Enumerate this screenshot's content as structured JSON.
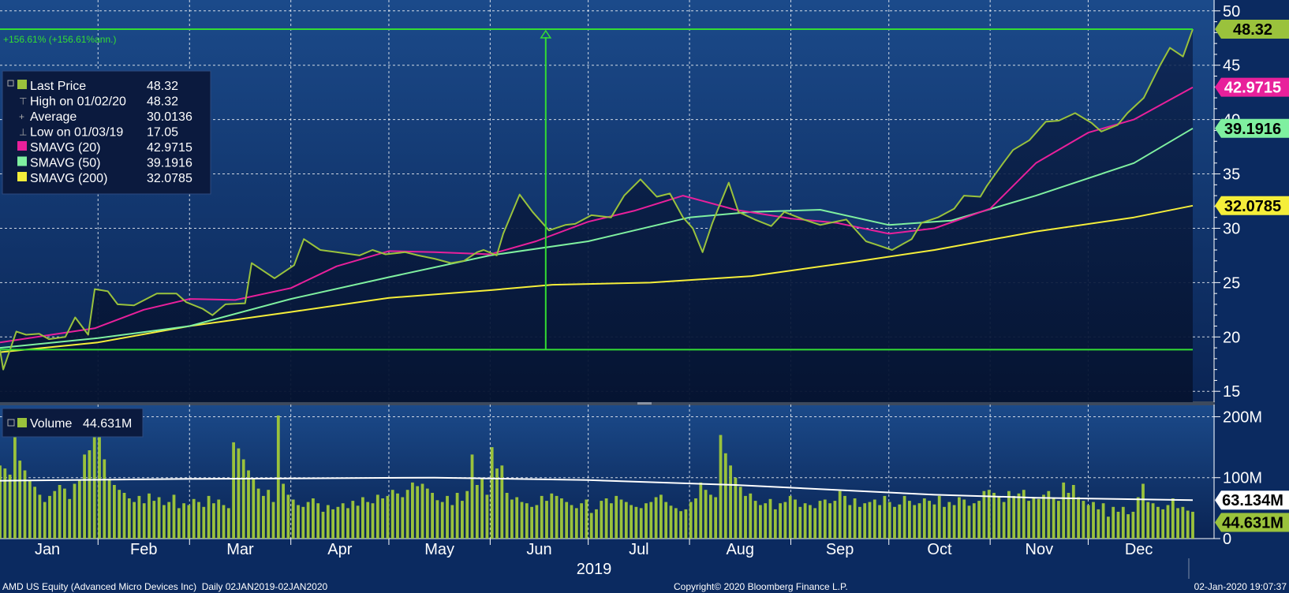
{
  "colors": {
    "price": "#9ac23c",
    "sma20": "#e8209b",
    "sma50": "#7ff0a0",
    "sma200": "#f5ee3a",
    "range_line": "#33dd33",
    "volume_bar": "#9ac23c",
    "volume_avg": "#ffffff"
  },
  "chart_data": [
    {
      "type": "line",
      "panel": "price",
      "x_range": [
        "2019-01-02",
        "2020-01-02"
      ],
      "ylim": [
        14,
        51
      ],
      "yticks": [
        15,
        20,
        25,
        30,
        35,
        40,
        45,
        50
      ],
      "grid": true,
      "legend_position": "top-left",
      "annotation": "+156.61% (+156.61%ann.)",
      "range_lines": {
        "high": 48.32,
        "low": 18.83,
        "date": "2019-06-18"
      },
      "legend": [
        {
          "label": "Last Price",
          "value": "48.32",
          "marker": "square",
          "color_key": "price"
        },
        {
          "label": "High on 01/02/20",
          "value": "48.32",
          "marker": "glyph"
        },
        {
          "label": "Average",
          "value": "30.0136",
          "marker": "glyph"
        },
        {
          "label": "Low on 01/03/19",
          "value": "17.05",
          "marker": "glyph"
        },
        {
          "label": "SMAVG (20)",
          "value": "42.9715",
          "marker": "square",
          "color_key": "sma20"
        },
        {
          "label": "SMAVG (50)",
          "value": "39.1916",
          "marker": "square",
          "color_key": "sma50"
        },
        {
          "label": "SMAVG (200)",
          "value": "32.0785",
          "marker": "square",
          "color_key": "sma200"
        }
      ],
      "value_tags": [
        {
          "text": "48.32",
          "value": 48.32,
          "color_key": "price",
          "text_color": "#000000"
        },
        {
          "text": "42.9715",
          "value": 42.9715,
          "color_key": "sma20",
          "text_color": "#ffffff"
        },
        {
          "text": "39.1916",
          "value": 39.1916,
          "color_key": "sma50",
          "text_color": "#000000"
        },
        {
          "text": "32.0785",
          "value": 32.0785,
          "color_key": "sma200",
          "text_color": "#000000"
        }
      ],
      "series": [
        {
          "key": "price",
          "points": [
            [
              "2019-01-02",
              18.8
            ],
            [
              "2019-01-03",
              17.0
            ],
            [
              "2019-01-07",
              20.5
            ],
            [
              "2019-01-10",
              20.2
            ],
            [
              "2019-01-14",
              20.3
            ],
            [
              "2019-01-17",
              19.8
            ],
            [
              "2019-01-22",
              20.0
            ],
            [
              "2019-01-25",
              21.8
            ],
            [
              "2019-01-29",
              20.2
            ],
            [
              "2019-01-31",
              24.4
            ],
            [
              "2019-02-04",
              24.2
            ],
            [
              "2019-02-07",
              23.0
            ],
            [
              "2019-02-12",
              22.9
            ],
            [
              "2019-02-19",
              24.0
            ],
            [
              "2019-02-25",
              24.0
            ],
            [
              "2019-02-28",
              23.2
            ],
            [
              "2019-03-05",
              22.6
            ],
            [
              "2019-03-08",
              22.0
            ],
            [
              "2019-03-12",
              23.0
            ],
            [
              "2019-03-18",
              23.1
            ],
            [
              "2019-03-20",
              26.8
            ],
            [
              "2019-03-27",
              25.4
            ],
            [
              "2019-04-02",
              26.6
            ],
            [
              "2019-04-05",
              29.0
            ],
            [
              "2019-04-10",
              28.0
            ],
            [
              "2019-04-15",
              27.8
            ],
            [
              "2019-04-22",
              27.5
            ],
            [
              "2019-04-26",
              28.0
            ],
            [
              "2019-04-30",
              27.6
            ],
            [
              "2019-05-06",
              27.8
            ],
            [
              "2019-05-10",
              27.5
            ],
            [
              "2019-05-15",
              27.2
            ],
            [
              "2019-05-20",
              26.8
            ],
            [
              "2019-05-24",
              27.0
            ],
            [
              "2019-05-28",
              27.8
            ],
            [
              "2019-05-30",
              28.0
            ],
            [
              "2019-06-03",
              27.5
            ],
            [
              "2019-06-05",
              29.5
            ],
            [
              "2019-06-10",
              33.1
            ],
            [
              "2019-06-14",
              31.5
            ],
            [
              "2019-06-19",
              29.8
            ],
            [
              "2019-06-24",
              30.3
            ],
            [
              "2019-06-27",
              30.4
            ],
            [
              "2019-07-02",
              31.2
            ],
            [
              "2019-07-08",
              31.0
            ],
            [
              "2019-07-12",
              33.0
            ],
            [
              "2019-07-17",
              34.5
            ],
            [
              "2019-07-22",
              32.9
            ],
            [
              "2019-07-26",
              33.2
            ],
            [
              "2019-07-30",
              31.0
            ],
            [
              "2019-08-02",
              30.0
            ],
            [
              "2019-08-05",
              27.8
            ],
            [
              "2019-08-08",
              30.5
            ],
            [
              "2019-08-13",
              34.2
            ],
            [
              "2019-08-16",
              31.5
            ],
            [
              "2019-08-21",
              30.8
            ],
            [
              "2019-08-26",
              30.2
            ],
            [
              "2019-08-30",
              31.5
            ],
            [
              "2019-09-05",
              30.8
            ],
            [
              "2019-09-10",
              30.3
            ],
            [
              "2019-09-13",
              30.5
            ],
            [
              "2019-09-18",
              30.8
            ],
            [
              "2019-09-24",
              28.8
            ],
            [
              "2019-09-27",
              28.5
            ],
            [
              "2019-10-02",
              28.0
            ],
            [
              "2019-10-08",
              29.0
            ],
            [
              "2019-10-11",
              30.5
            ],
            [
              "2019-10-16",
              31.0
            ],
            [
              "2019-10-21",
              31.8
            ],
            [
              "2019-10-24",
              33.0
            ],
            [
              "2019-10-29",
              32.9
            ],
            [
              "2019-10-31",
              33.9
            ],
            [
              "2019-11-05",
              36.0
            ],
            [
              "2019-11-08",
              37.2
            ],
            [
              "2019-11-13",
              38.1
            ],
            [
              "2019-11-18",
              39.8
            ],
            [
              "2019-11-22",
              39.9
            ],
            [
              "2019-11-27",
              40.6
            ],
            [
              "2019-12-02",
              39.7
            ],
            [
              "2019-12-05",
              38.9
            ],
            [
              "2019-12-10",
              39.5
            ],
            [
              "2019-12-13",
              40.6
            ],
            [
              "2019-12-18",
              42.0
            ],
            [
              "2019-12-23",
              45.0
            ],
            [
              "2019-12-26",
              46.6
            ],
            [
              "2019-12-30",
              45.8
            ],
            [
              "2020-01-02",
              48.32
            ]
          ]
        },
        {
          "key": "sma20",
          "points": [
            [
              "2019-01-02",
              19.5
            ],
            [
              "2019-01-31",
              20.8
            ],
            [
              "2019-02-15",
              22.5
            ],
            [
              "2019-03-01",
              23.5
            ],
            [
              "2019-03-15",
              23.4
            ],
            [
              "2019-04-01",
              24.5
            ],
            [
              "2019-04-15",
              26.5
            ],
            [
              "2019-05-01",
              27.9
            ],
            [
              "2019-05-15",
              27.8
            ],
            [
              "2019-06-01",
              27.6
            ],
            [
              "2019-06-15",
              28.8
            ],
            [
              "2019-07-01",
              30.6
            ],
            [
              "2019-07-15",
              31.6
            ],
            [
              "2019-07-30",
              33.0
            ],
            [
              "2019-08-15",
              31.7
            ],
            [
              "2019-09-01",
              30.9
            ],
            [
              "2019-09-15",
              30.5
            ],
            [
              "2019-10-01",
              29.5
            ],
            [
              "2019-10-15",
              30.0
            ],
            [
              "2019-11-01",
              31.8
            ],
            [
              "2019-11-15",
              36.0
            ],
            [
              "2019-12-01",
              38.8
            ],
            [
              "2019-12-15",
              40.0
            ],
            [
              "2020-01-02",
              42.97
            ]
          ]
        },
        {
          "key": "sma50",
          "points": [
            [
              "2019-01-02",
              19.0
            ],
            [
              "2019-02-01",
              19.9
            ],
            [
              "2019-03-01",
              21.0
            ],
            [
              "2019-04-01",
              23.5
            ],
            [
              "2019-05-01",
              25.5
            ],
            [
              "2019-06-01",
              27.5
            ],
            [
              "2019-07-01",
              28.8
            ],
            [
              "2019-08-01",
              31.0
            ],
            [
              "2019-08-20",
              31.5
            ],
            [
              "2019-09-10",
              31.7
            ],
            [
              "2019-10-01",
              30.3
            ],
            [
              "2019-10-20",
              30.7
            ],
            [
              "2019-11-15",
              33.0
            ],
            [
              "2019-12-15",
              36.0
            ],
            [
              "2020-01-02",
              39.19
            ]
          ]
        },
        {
          "key": "sma200",
          "points": [
            [
              "2019-01-02",
              18.6
            ],
            [
              "2019-02-01",
              19.5
            ],
            [
              "2019-03-01",
              21.0
            ],
            [
              "2019-04-01",
              22.3
            ],
            [
              "2019-05-01",
              23.6
            ],
            [
              "2019-06-01",
              24.3
            ],
            [
              "2019-06-20",
              24.8
            ],
            [
              "2019-07-20",
              25.0
            ],
            [
              "2019-08-20",
              25.6
            ],
            [
              "2019-09-20",
              26.9
            ],
            [
              "2019-10-15",
              28.0
            ],
            [
              "2019-11-15",
              29.7
            ],
            [
              "2019-12-15",
              31.0
            ],
            [
              "2020-01-02",
              32.08
            ]
          ]
        }
      ]
    },
    {
      "type": "bar",
      "panel": "volume",
      "legend": [
        {
          "label": "Volume",
          "value": "44.631M",
          "color_key": "volume_bar"
        }
      ],
      "value_tags": [
        {
          "text": "44.631M",
          "value": 44.631,
          "color_key": "volume_bar",
          "text_color": "#000000"
        },
        {
          "text": "63.134M",
          "value": 63.134,
          "color_key": "volume_avg",
          "text_color": "#000000"
        }
      ],
      "ylim": [
        0,
        220
      ],
      "yticks": [
        0,
        100,
        200
      ],
      "ytick_labels": [
        "0",
        "100M",
        "200M"
      ],
      "unit": "M",
      "avg_line": [
        [
          "2019-01-02",
          95
        ],
        [
          "2019-03-01",
          98
        ],
        [
          "2019-05-15",
          100
        ],
        [
          "2019-07-01",
          96
        ],
        [
          "2019-08-15",
          88
        ],
        [
          "2019-10-15",
          72
        ],
        [
          "2019-11-15",
          67
        ],
        [
          "2020-01-02",
          63
        ]
      ],
      "values": [
        120,
        115,
        105,
        168,
        128,
        112,
        95,
        85,
        72,
        60,
        70,
        78,
        88,
        82,
        65,
        90,
        95,
        138,
        145,
        195,
        185,
        130,
        98,
        88,
        80,
        75,
        66,
        60,
        70,
        58,
        74,
        62,
        68,
        55,
        60,
        72,
        50,
        58,
        55,
        65,
        60,
        52,
        70,
        58,
        64,
        55,
        50,
        158,
        148,
        130,
        112,
        98,
        82,
        70,
        80,
        60,
        202,
        90,
        72,
        64,
        55,
        52,
        60,
        66,
        58,
        44,
        55,
        48,
        52,
        58,
        50,
        62,
        54,
        68,
        60,
        58,
        72,
        66,
        70,
        80,
        74,
        68,
        80,
        92,
        86,
        90,
        82,
        75,
        63,
        60,
        70,
        55,
        75,
        62,
        78,
        138,
        88,
        100,
        72,
        150,
        115,
        120,
        75,
        64,
        68,
        60,
        58,
        52,
        55,
        70,
        62,
        74,
        70,
        66,
        60,
        55,
        50,
        58,
        64,
        42,
        48,
        62,
        66,
        58,
        70,
        64,
        60,
        55,
        52,
        50,
        58,
        60,
        68,
        72,
        60,
        54,
        50,
        45,
        48,
        60,
        66,
        92,
        80,
        72,
        68,
        170,
        140,
        120,
        100,
        85,
        70,
        74,
        62,
        55,
        58,
        65,
        48,
        58,
        60,
        70,
        64,
        52,
        58,
        55,
        50,
        62,
        64,
        58,
        62,
        78,
        70,
        55,
        66,
        52,
        58,
        60,
        64,
        55,
        70,
        60,
        52,
        56,
        70,
        62,
        55,
        58,
        66,
        62,
        56,
        70,
        52,
        60,
        55,
        68,
        64,
        54,
        58,
        62,
        78,
        80,
        75,
        68,
        60,
        78,
        70,
        74,
        80,
        62,
        68,
        65,
        72,
        78,
        66,
        62,
        92,
        75,
        88,
        68,
        62,
        55,
        60,
        48,
        58,
        36,
        52,
        44,
        52,
        40,
        44,
        68,
        90,
        60,
        58,
        52,
        48,
        55,
        66,
        50,
        52,
        46,
        44
      ],
      "first_date": "2019-01-02",
      "last_date": "2020-01-02"
    }
  ],
  "x_axis": {
    "months": [
      "Jan",
      "Feb",
      "Mar",
      "Apr",
      "May",
      "Jun",
      "Jul",
      "Aug",
      "Sep",
      "Oct",
      "Nov",
      "Dec"
    ],
    "year": "2019"
  },
  "footer": {
    "left": "AMD US Equity (Advanced Micro Devices Inc)  Daily 02JAN2019-02JAN2020",
    "center": "Copyright© 2020 Bloomberg Finance L.P.",
    "right": "02-Jan-2020 19:07:37"
  }
}
